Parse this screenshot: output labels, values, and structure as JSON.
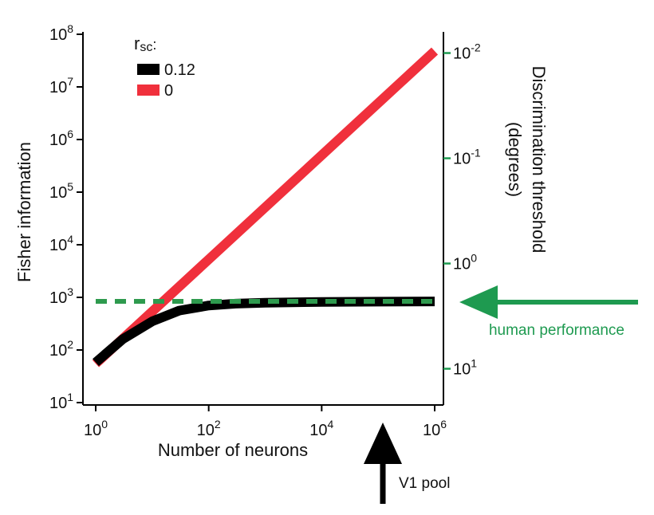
{
  "chart_data": {
    "type": "line",
    "xlabel": "Number of neurons",
    "ylabel": "Fisher information",
    "y2label_line1": "Discrimination threshold",
    "y2label_line2": "(degrees)",
    "x_scale": "log",
    "y_scale": "log",
    "xlim": [
      1,
      1000000
    ],
    "ylim": [
      10,
      100000000
    ],
    "x_ticks": [
      1,
      100,
      10000,
      1000000
    ],
    "x_tick_labels": [
      {
        "base": "10",
        "exp": "0"
      },
      {
        "base": "10",
        "exp": "2"
      },
      {
        "base": "10",
        "exp": "4"
      },
      {
        "base": "10",
        "exp": "6"
      }
    ],
    "y_ticks": [
      10,
      100,
      1000,
      10000,
      100000,
      1000000,
      10000000,
      100000000
    ],
    "y_tick_labels": [
      {
        "base": "10",
        "exp": "1"
      },
      {
        "base": "10",
        "exp": "2"
      },
      {
        "base": "10",
        "exp": "3"
      },
      {
        "base": "10",
        "exp": "4"
      },
      {
        "base": "10",
        "exp": "5"
      },
      {
        "base": "10",
        "exp": "6"
      },
      {
        "base": "10",
        "exp": "7"
      },
      {
        "base": "10",
        "exp": "8"
      }
    ],
    "y2_ticks_fisher": [
      44,
      4400,
      440000,
      44000000
    ],
    "y2_tick_labels": [
      {
        "base": "10",
        "exp": "1"
      },
      {
        "base": "10",
        "exp": "0"
      },
      {
        "base": "10",
        "exp": "-1"
      },
      {
        "base": "10",
        "exp": "-2"
      }
    ],
    "legend": {
      "title_main": "r",
      "title_sub": "sc",
      "title_suffix": ":",
      "placement": "top-left"
    },
    "series": [
      {
        "name": "0.12",
        "color": "#000000",
        "x": [
          1,
          3,
          10,
          30,
          100,
          300,
          1000,
          10000,
          100000,
          1000000
        ],
        "y": [
          58,
          160,
          350,
          560,
          700,
          760,
          790,
          820,
          830,
          835
        ]
      },
      {
        "name": "0",
        "color": "#f0303c",
        "x": [
          1,
          1000000
        ],
        "y": [
          55,
          48000000
        ]
      }
    ],
    "reference_line": {
      "color": "#2e9a4e",
      "x": [
        1,
        1000000
      ],
      "y": [
        840,
        840
      ]
    },
    "annotations": {
      "human_performance": {
        "text": "human performance",
        "color": "#1e9a50"
      },
      "v1_pool": {
        "text": "V1 pool",
        "color": "#000000",
        "x": 100000
      }
    },
    "axis_color_right": "#1e9a50"
  }
}
